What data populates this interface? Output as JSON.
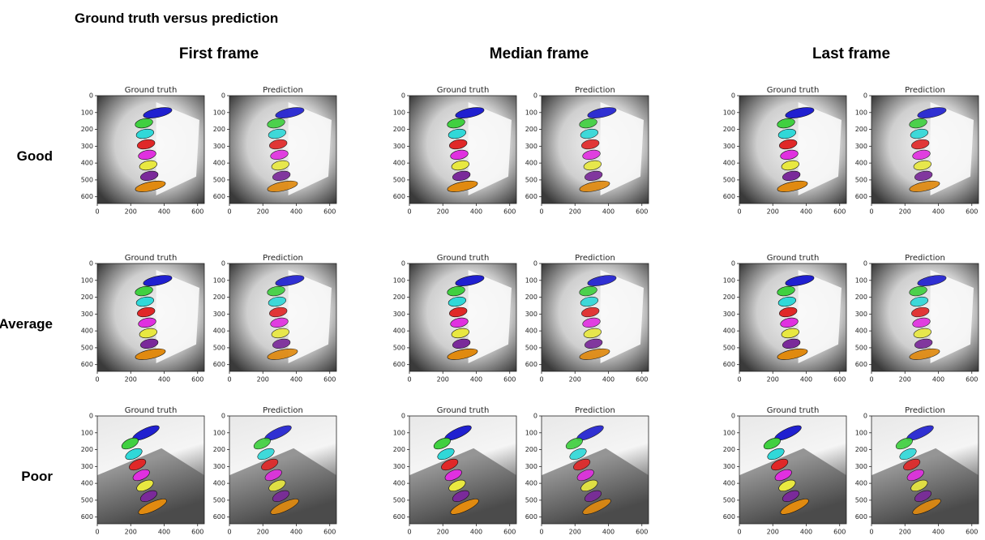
{
  "header": {
    "title": "Ground truth versus prediction"
  },
  "columns": [
    "First frame",
    "Median frame",
    "Last frame"
  ],
  "rows": [
    "Good",
    "Average",
    "Poor"
  ],
  "panel_titles": [
    "Ground truth",
    "Prediction"
  ],
  "axes": {
    "xticks": [
      0,
      200,
      400,
      600
    ],
    "yticks": [
      0,
      100,
      200,
      300,
      400,
      500,
      600
    ],
    "xlim": [
      0,
      640
    ],
    "ylim": [
      0,
      640
    ]
  }
}
